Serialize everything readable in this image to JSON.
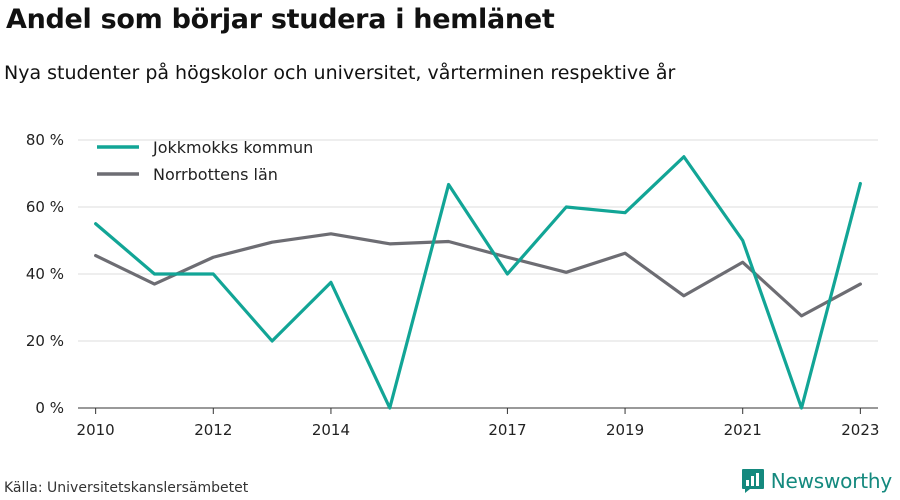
{
  "header": {
    "title": "Andel som börjar studera i hemlänet",
    "subtitle": "Nya studenter på högskolor och universitet, vårterminen respektive år"
  },
  "footer": {
    "source": "Källa: Universitetskanslersämbetet",
    "brand": "Newsworthy",
    "brand_icon": "bar-chart-logo-icon",
    "brand_color": "#14897e"
  },
  "chart_data": {
    "type": "line",
    "x": [
      2010,
      2011,
      2012,
      2013,
      2014,
      2015,
      2016,
      2017,
      2018,
      2019,
      2020,
      2021,
      2022,
      2023
    ],
    "x_tick_labels": [
      "2010",
      "2012",
      "2014",
      "2017",
      "2019",
      "2021",
      "2023"
    ],
    "x_tick_values": [
      2010,
      2012,
      2014,
      2017,
      2019,
      2021,
      2023
    ],
    "y_tick_labels": [
      "0 %",
      "20 %",
      "40 %",
      "60 %",
      "80 %"
    ],
    "y_tick_values": [
      0,
      20,
      40,
      60,
      80
    ],
    "ylim": [
      0,
      80
    ],
    "grid": true,
    "legend_position": "top-left",
    "series": [
      {
        "name": "Jokkmokks kommun",
        "color": "#12a596",
        "values": [
          55,
          40,
          40,
          20,
          37.5,
          0,
          66.7,
          40,
          60,
          58.3,
          75,
          50,
          0,
          67
        ]
      },
      {
        "name": "Norrbottens län",
        "color": "#6d6d73",
        "values": [
          45.5,
          37,
          45,
          49.5,
          52,
          49,
          49.7,
          45,
          40.5,
          46.2,
          33.5,
          43.5,
          27.5,
          37
        ]
      }
    ]
  }
}
